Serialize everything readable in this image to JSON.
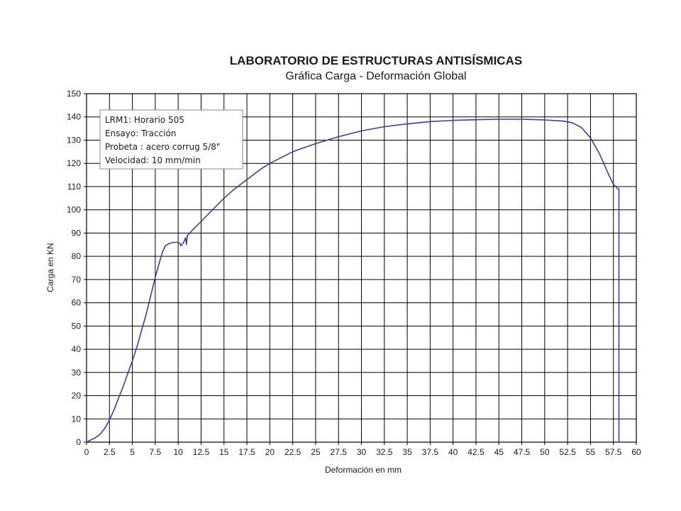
{
  "chart_data": {
    "type": "line",
    "title": "LABORATORIO DE ESTRUCTURAS ANTISÍSMICAS",
    "subtitle": "Gráfica  Carga - Deformación Global",
    "xlabel": "Deformación en mm",
    "ylabel": "Carga en KN",
    "xlim": [
      0,
      60
    ],
    "ylim": [
      0,
      150
    ],
    "x_ticks": [
      0,
      2.5,
      5,
      7.5,
      10,
      12.5,
      15,
      17.5,
      20,
      22.5,
      25,
      27.5,
      30,
      32.5,
      35,
      37.5,
      40,
      42.5,
      45,
      47.5,
      50,
      52.5,
      55,
      57.5,
      60
    ],
    "y_ticks": [
      0,
      10,
      20,
      30,
      40,
      50,
      60,
      70,
      80,
      90,
      100,
      110,
      120,
      130,
      140,
      150
    ],
    "grid": true,
    "legend_position": "top-left",
    "annotation_lines": [
      "LRM1: Horario 505",
      "Ensayo: Tracción",
      "Probeta : acero corrug 5/8\"",
      "Velocidad: 10 mm/min"
    ],
    "line_color": "#3b3f96",
    "series": [
      {
        "x": [
          0,
          0.5,
          1,
          1.5,
          2,
          2.5,
          3,
          3.5,
          4,
          4.5,
          5,
          5.5,
          6,
          6.5,
          7,
          7.5,
          8,
          8.3,
          8.6,
          9,
          9.5,
          10,
          10.2,
          10.3,
          10.6,
          10.8,
          10.9,
          11,
          11.5,
          12,
          13,
          14,
          15,
          16,
          17.5,
          19,
          20,
          22.5,
          25,
          27.5,
          30,
          32.5,
          35,
          37.5,
          40,
          42.5,
          45,
          47.5,
          50,
          52,
          53,
          54,
          55,
          56,
          57,
          57.5,
          58,
          58.1,
          58.1
        ],
        "y": [
          0,
          1,
          2,
          3.5,
          6,
          9.5,
          14,
          19,
          24,
          29.5,
          35,
          41,
          48,
          55,
          63,
          71,
          78,
          82,
          84.5,
          85.5,
          86,
          86,
          85.5,
          84.5,
          86,
          88,
          85,
          89,
          91,
          93,
          97,
          101,
          105,
          108.5,
          113,
          117.5,
          120,
          125,
          128.5,
          131.5,
          134,
          135.8,
          137,
          138,
          138.5,
          138.8,
          139,
          139,
          138.7,
          138.2,
          137.5,
          135.5,
          131,
          124,
          115,
          111,
          109,
          109,
          0
        ]
      }
    ]
  }
}
